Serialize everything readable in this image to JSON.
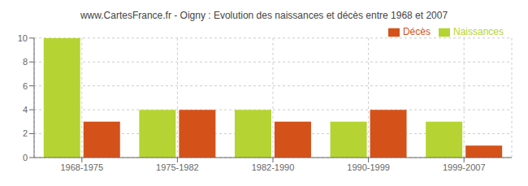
{
  "chart_data": {
    "type": "bar",
    "title": "www.CartesFrance.fr - Oigny : Evolution des naissances et décès entre 1968 et 2007",
    "categories": [
      "1968-1975",
      "1975-1982",
      "1982-1990",
      "1990-1999",
      "1999-2007"
    ],
    "series": [
      {
        "name": "Naissances",
        "color": "#b5d433",
        "values": [
          10,
          4,
          4,
          3,
          3
        ]
      },
      {
        "name": "Décès",
        "color": "#d4521a",
        "values": [
          3,
          4,
          3,
          4,
          1
        ]
      }
    ],
    "ylim": [
      0,
      10
    ],
    "yticks": [
      0,
      2,
      4,
      6,
      8,
      10
    ],
    "grid": true,
    "legend": "upper right"
  }
}
